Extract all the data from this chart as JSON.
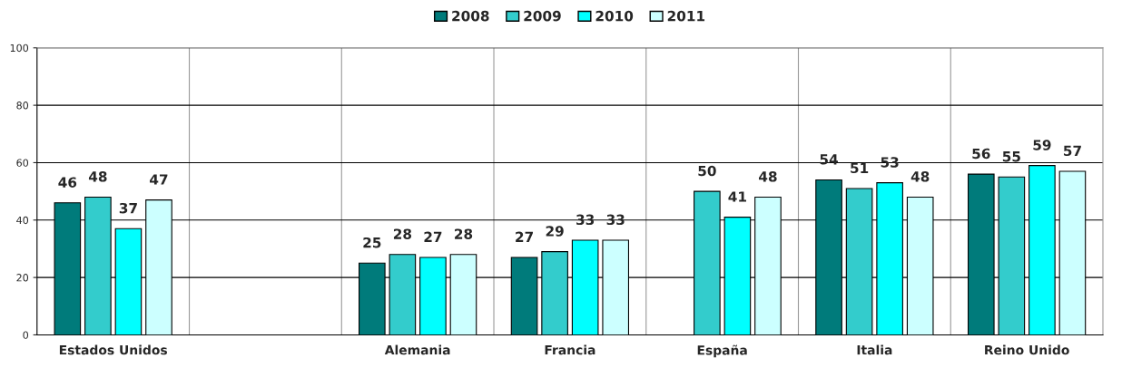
{
  "chart_data": {
    "type": "bar",
    "categories": [
      "Estados Unidos",
      null,
      "Alemania",
      "Francia",
      "España",
      "Italia",
      "Reino Unido"
    ],
    "series": [
      {
        "name": "2008",
        "color": "#007b7b",
        "values": [
          46,
          null,
          25,
          27,
          null,
          54,
          56
        ]
      },
      {
        "name": "2009",
        "color": "#33cccc",
        "values": [
          48,
          null,
          28,
          29,
          50,
          51,
          55
        ]
      },
      {
        "name": "2010",
        "color": "#00ffff",
        "values": [
          37,
          null,
          27,
          33,
          41,
          53,
          59
        ]
      },
      {
        "name": "2011",
        "color": "#ccffff",
        "values": [
          47,
          null,
          28,
          33,
          48,
          48,
          57
        ]
      }
    ],
    "ylim": [
      0,
      100
    ],
    "yticks": [
      0,
      20,
      40,
      60,
      80,
      100
    ],
    "grid": true,
    "legend": "top",
    "data_labels": true
  }
}
